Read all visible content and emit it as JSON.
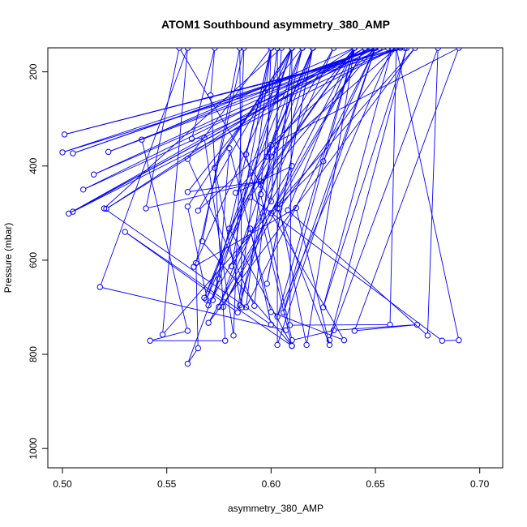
{
  "chart_data": {
    "type": "scatter",
    "title": "ATOM1 Southbound asymmetry_380_AMP",
    "xlabel": "asymmetry_380_AMP",
    "ylabel": "Pressure (mbar)",
    "xlim": [
      0.493,
      0.711
    ],
    "ylim": [
      1041,
      149
    ],
    "y_reversed": true,
    "xticks": [
      0.5,
      0.55,
      0.6,
      0.65,
      0.7
    ],
    "xtick_labels": [
      "0.50",
      "0.55",
      "0.60",
      "0.65",
      "0.70"
    ],
    "yticks": [
      200,
      400,
      600,
      800,
      1000
    ],
    "ytick_labels": [
      "200",
      "400",
      "600",
      "800",
      "1000"
    ],
    "grid": false,
    "legend": "none",
    "color": "#0000ff",
    "marker": "open-circle",
    "connected": true,
    "series": [
      {
        "points": [
          [
            0.662,
            149
          ],
          [
            0.501,
            333
          ],
          [
            0.664,
            149
          ],
          [
            0.5,
            371
          ],
          [
            0.652,
            149
          ],
          [
            0.505,
            373
          ],
          [
            0.65,
            149
          ],
          [
            0.522,
            370
          ],
          [
            0.656,
            149
          ],
          [
            0.515,
            418
          ],
          [
            0.648,
            149
          ],
          [
            0.51,
            450
          ],
          [
            0.66,
            149
          ],
          [
            0.505,
            497
          ],
          [
            0.65,
            149
          ],
          [
            0.503,
            501
          ],
          [
            0.645,
            149
          ],
          [
            0.521,
            491
          ],
          [
            0.64,
            149
          ],
          [
            0.538,
            344
          ],
          [
            0.56,
            750
          ],
          [
            0.542,
            771
          ],
          [
            0.578,
            771
          ],
          [
            0.571,
            250
          ],
          [
            0.573,
            149
          ],
          [
            0.562,
            342
          ],
          [
            0.568,
            340
          ],
          [
            0.582,
            760
          ],
          [
            0.587,
            149
          ],
          [
            0.564,
            606
          ],
          [
            0.565,
            787
          ],
          [
            0.56,
            820
          ],
          [
            0.575,
            640
          ],
          [
            0.58,
            362
          ],
          [
            0.6,
            710
          ],
          [
            0.635,
            770
          ],
          [
            0.6,
            500
          ],
          [
            0.625,
            390
          ],
          [
            0.65,
            149
          ],
          [
            0.565,
            495
          ],
          [
            0.61,
            149
          ],
          [
            0.573,
            404
          ],
          [
            0.586,
            700
          ],
          [
            0.585,
            149
          ],
          [
            0.567,
            560
          ],
          [
            0.61,
            782
          ],
          [
            0.588,
            375
          ],
          [
            0.6,
            149
          ],
          [
            0.581,
            613
          ],
          [
            0.61,
            400
          ],
          [
            0.583,
            457
          ],
          [
            0.64,
            149
          ],
          [
            0.59,
            466
          ],
          [
            0.682,
            771
          ],
          [
            0.69,
            770
          ],
          [
            0.66,
            149
          ],
          [
            0.6,
            380
          ],
          [
            0.595,
            460
          ],
          [
            0.61,
            770
          ],
          [
            0.63,
            749
          ],
          [
            0.67,
            737
          ],
          [
            0.64,
            750
          ],
          [
            0.69,
            149
          ],
          [
            0.6,
            355
          ],
          [
            0.592,
            697
          ],
          [
            0.56,
            385
          ],
          [
            0.6,
            149
          ],
          [
            0.584,
            711
          ],
          [
            0.53,
            540
          ],
          [
            0.61,
            782
          ],
          [
            0.58,
            533
          ],
          [
            0.63,
            149
          ],
          [
            0.575,
            699
          ],
          [
            0.62,
            149
          ],
          [
            0.568,
            680
          ],
          [
            0.615,
            149
          ],
          [
            0.56,
            455
          ],
          [
            0.595,
            433
          ],
          [
            0.54,
            490
          ],
          [
            0.556,
            149
          ],
          [
            0.6,
            475
          ],
          [
            0.605,
            149
          ],
          [
            0.52,
            490
          ],
          [
            0.6,
            737
          ],
          [
            0.59,
            533
          ],
          [
            0.57,
            696
          ],
          [
            0.56,
            486
          ],
          [
            0.61,
            149
          ],
          [
            0.569,
            684
          ],
          [
            0.62,
            149
          ],
          [
            0.598,
            650
          ],
          [
            0.62,
            149
          ],
          [
            0.585,
            696
          ],
          [
            0.615,
            149
          ],
          [
            0.598,
            380
          ],
          [
            0.6,
            149
          ],
          [
            0.572,
            685
          ],
          [
            0.61,
            149
          ],
          [
            0.563,
            614
          ],
          [
            0.612,
            489
          ],
          [
            0.628,
            780
          ],
          [
            0.603,
            490
          ],
          [
            0.61,
            149
          ],
          [
            0.609,
            738
          ],
          [
            0.657,
            737
          ],
          [
            0.66,
            149
          ],
          [
            0.604,
            490
          ],
          [
            0.617,
            780
          ],
          [
            0.64,
            149
          ],
          [
            0.608,
            494
          ],
          [
            0.675,
            760
          ],
          [
            0.68,
            149
          ],
          [
            0.628,
            770
          ],
          [
            0.665,
            149
          ],
          [
            0.625,
            700
          ],
          [
            0.658,
            149
          ],
          [
            0.603,
            720
          ],
          [
            0.64,
            149
          ],
          [
            0.606,
            711
          ],
          [
            0.65,
            149
          ],
          [
            0.603,
            780
          ],
          [
            0.603,
            149
          ],
          [
            0.588,
            700
          ],
          [
            0.65,
            149
          ],
          [
            0.595,
            440
          ],
          [
            0.64,
            149
          ],
          [
            0.577,
            699
          ],
          [
            0.645,
            149
          ],
          [
            0.57,
            733
          ],
          [
            0.669,
            149
          ],
          [
            0.548,
            758
          ],
          [
            0.56,
            149
          ],
          [
            0.518,
            657
          ],
          [
            0.607,
            749
          ]
        ]
      }
    ]
  }
}
